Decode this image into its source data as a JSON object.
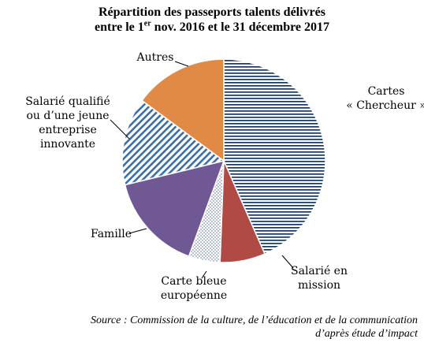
{
  "chart_data": {
    "type": "pie",
    "title_line1": "Répartition des passeports talents délivrés",
    "title_line2_a": "entre le 1",
    "title_line2_sup": "er",
    "title_line2_b": " nov. 2016 et le 31 décembre 2017",
    "slices": [
      {
        "label": "Cartes « Chercheur »",
        "label_lines": [
          "Cartes",
          "« Chercheur »"
        ],
        "value": 43.4,
        "fill": "hatch-h",
        "color": "#17375e"
      },
      {
        "label": "Salarié en mission",
        "label_lines": [
          "Salarié en",
          "mission"
        ],
        "value": 7.2,
        "fill": "solid",
        "color": "#b04a45"
      },
      {
        "label": "Carte bleue européenne",
        "label_lines": [
          "Carte bleue",
          "européenne"
        ],
        "value": 5.0,
        "fill": "dots",
        "color": "#1f3f7a"
      },
      {
        "label": "Famille",
        "label_lines": [
          "Famille"
        ],
        "value": 15.6,
        "fill": "solid",
        "color": "#6f5894"
      },
      {
        "label": "Salarié qualifié ou d'une jeune entreprise innovante",
        "label_lines": [
          "Salarié qualifié",
          "ou d’une jeune",
          "entreprise",
          "innovante"
        ],
        "value": 13.9,
        "fill": "hatch-d",
        "color": "#3b6ea8"
      },
      {
        "label": "Autres",
        "label_lines": [
          "Autres"
        ],
        "value": 14.9,
        "fill": "solid",
        "color": "#e08a45"
      }
    ]
  },
  "source_line1": "Source : Commission de la culture,  de l’éducation et de la communication",
  "source_line2": "d’après étude d’impact"
}
